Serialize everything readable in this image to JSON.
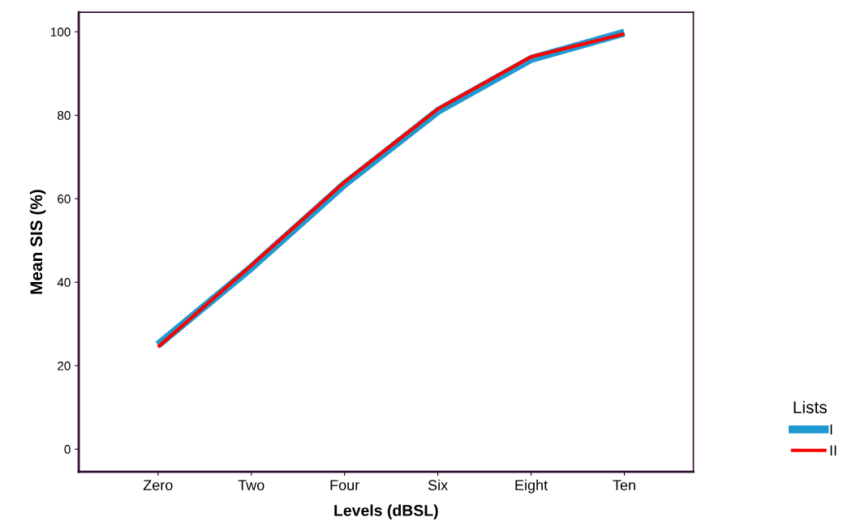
{
  "chart_data": {
    "type": "line",
    "xlabel": "Levels (dBSL)",
    "ylabel": "Mean SIS (%)",
    "legend_title": "Lists",
    "legend": "right",
    "categories": [
      "Zero",
      "Two",
      "Four",
      "Six",
      "Eight",
      "Ten"
    ],
    "series": [
      {
        "name": "I",
        "color": "#1e9ad0",
        "values": [
          25,
          43.5,
          63.5,
          81,
          93.5,
          99.8
        ]
      },
      {
        "name": "II",
        "color": "#ff0000",
        "values": [
          24.5,
          44,
          64,
          81.5,
          94,
          99.5
        ]
      }
    ],
    "ylim": [
      -5.4,
      104.7
    ],
    "yticks": [
      0,
      20,
      40,
      60,
      80,
      100
    ],
    "grid": false
  }
}
